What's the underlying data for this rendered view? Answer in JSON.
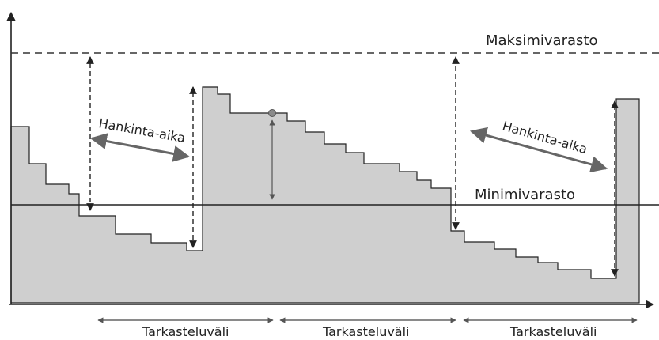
{
  "labels": {
    "max_stock": "Maksimivarasto",
    "min_stock": "Minimivarasto",
    "lead_time_1": "Hankinta-aika",
    "lead_time_2": "Hankinta-aika",
    "review_period_1": "Tarkasteluväli",
    "review_period_2": "Tarkasteluväli",
    "review_period_3": "Tarkasteluväli"
  },
  "colors": {
    "inventory_fill": "#cfcfcf",
    "line": "#222222",
    "dot": "#8a8a8a",
    "arrow_gray": "#666666"
  }
}
